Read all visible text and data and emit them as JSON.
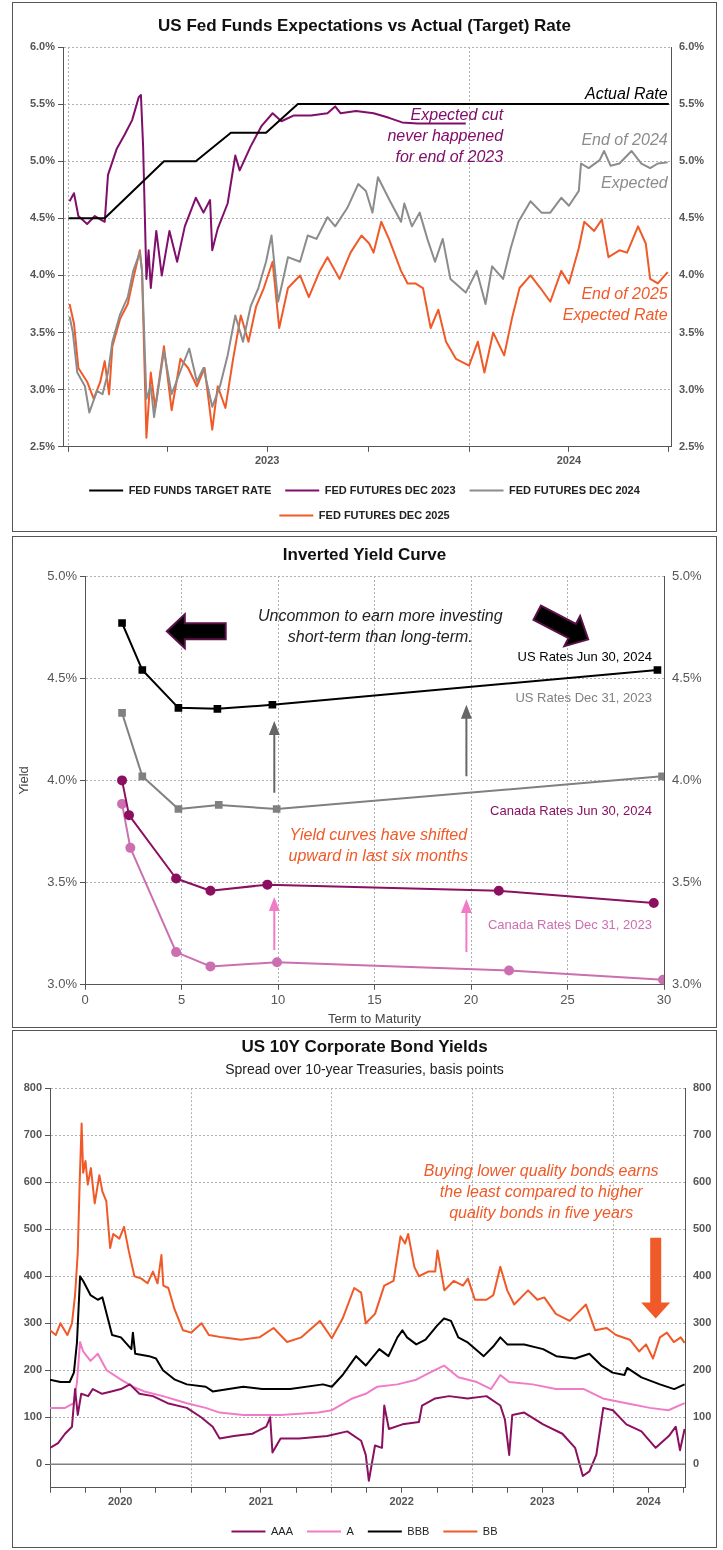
{
  "chart_data": [
    {
      "type": "line",
      "title": "US Fed Funds Expectations vs Actual (Target) Rate",
      "legend": "bottom",
      "grid": true,
      "xlim": [
        "2022-12-27",
        "2024-07-03"
      ],
      "xticks": [
        {
          "value": "2023-01-01",
          "label": null
        },
        {
          "value": "2023-04-01",
          "label": null
        },
        {
          "value": "2023-07-01",
          "label": "2023"
        },
        {
          "value": "2023-10-01",
          "label": null
        },
        {
          "value": "2024-01-01",
          "label": null
        },
        {
          "value": "2024-04-01",
          "label": "2024"
        },
        {
          "value": "2024-07-01",
          "label": null
        }
      ],
      "ylim": [
        2.5,
        6.0
      ],
      "yticks": [
        {
          "value": 2.5,
          "label": "2.5%"
        },
        {
          "value": 3.0,
          "label": "3.0%"
        },
        {
          "value": 3.5,
          "label": "3.5%"
        },
        {
          "value": 4.0,
          "label": "4.0%"
        },
        {
          "value": 4.5,
          "label": "4.5%"
        },
        {
          "value": 5.0,
          "label": "5.0%"
        },
        {
          "value": 5.5,
          "label": "5.5%"
        },
        {
          "value": 6.0,
          "label": "6.0%"
        }
      ],
      "y2lim": [
        2.5,
        6.0
      ],
      "y2ticks": [
        {
          "value": 2.5,
          "label": "2.5%"
        },
        {
          "value": 3.0,
          "label": "3.0%"
        },
        {
          "value": 3.5,
          "label": "3.5%"
        },
        {
          "value": 4.0,
          "label": "4.0%"
        },
        {
          "value": 4.5,
          "label": "4.5%"
        },
        {
          "value": 5.0,
          "label": "5.0%"
        },
        {
          "value": 5.5,
          "label": "5.5%"
        },
        {
          "value": 6.0,
          "label": "6.0%"
        }
      ],
      "series": [
        {
          "name": "FED FUNDS TARGET RATE",
          "color": "#000000",
          "x": [
            "2023-01-01",
            "2023-02-03",
            "2023-03-29",
            "2023-04-27",
            "2023-05-29",
            "2023-06-30",
            "2023-07-29",
            "2024-07-01"
          ],
          "values": [
            4.5,
            4.5,
            5.0,
            5.0,
            5.25,
            5.25,
            5.5,
            5.5
          ]
        },
        {
          "name": "FED FUTURES DEC 2023",
          "color": "#800e6a",
          "x": [
            "2023-01-02",
            "2023-01-06",
            "2023-01-10",
            "2023-01-18",
            "2023-01-25",
            "2023-02-01",
            "2023-02-03",
            "2023-02-06",
            "2023-02-14",
            "2023-02-21",
            "2023-02-28",
            "2023-03-06",
            "2023-03-08",
            "2023-03-10",
            "2023-03-13",
            "2023-03-15",
            "2023-03-17",
            "2023-03-22",
            "2023-03-27",
            "2023-04-03",
            "2023-04-10",
            "2023-04-17",
            "2023-04-27",
            "2023-05-04",
            "2023-05-10",
            "2023-05-12",
            "2023-05-17",
            "2023-05-26",
            "2023-06-02",
            "2023-06-06",
            "2023-06-16",
            "2023-06-26",
            "2023-07-06",
            "2023-07-14",
            "2023-07-25",
            "2023-08-10",
            "2023-08-25",
            "2023-09-01",
            "2023-09-06",
            "2023-09-20",
            "2023-10-06",
            "2023-10-20",
            "2023-11-01",
            "2023-11-15",
            "2023-12-01",
            "2023-12-29"
          ],
          "values": [
            4.65,
            4.72,
            4.52,
            4.45,
            4.52,
            4.48,
            4.47,
            4.88,
            5.11,
            5.23,
            5.36,
            5.56,
            5.58,
            5.13,
            3.97,
            4.22,
            3.89,
            4.39,
            4.0,
            4.39,
            4.12,
            4.43,
            4.68,
            4.55,
            4.66,
            4.22,
            4.41,
            4.63,
            5.05,
            4.92,
            5.13,
            5.31,
            5.42,
            5.35,
            5.4,
            5.4,
            5.42,
            5.48,
            5.42,
            5.44,
            5.42,
            5.38,
            5.34,
            5.33,
            5.33,
            5.33
          ]
        },
        {
          "name": "FED FUTURES DEC 2024",
          "color": "#8c8c8c",
          "x": [
            "2023-01-02",
            "2023-01-05",
            "2023-01-09",
            "2023-01-16",
            "2023-01-20",
            "2023-01-27",
            "2023-02-01",
            "2023-02-06",
            "2023-02-10",
            "2023-02-17",
            "2023-02-24",
            "2023-03-01",
            "2023-03-07",
            "2023-03-09",
            "2023-03-13",
            "2023-03-17",
            "2023-03-20",
            "2023-03-29",
            "2023-04-05",
            "2023-04-14",
            "2023-04-21",
            "2023-04-28",
            "2023-05-04",
            "2023-05-12",
            "2023-05-19",
            "2023-05-26",
            "2023-06-02",
            "2023-06-09",
            "2023-06-16",
            "2023-06-23",
            "2023-06-30",
            "2023-07-05",
            "2023-07-11",
            "2023-07-20",
            "2023-07-31",
            "2023-08-07",
            "2023-08-15",
            "2023-08-25",
            "2023-09-01",
            "2023-09-12",
            "2023-09-22",
            "2023-09-29",
            "2023-10-05",
            "2023-10-10",
            "2023-10-20",
            "2023-10-31",
            "2023-11-03",
            "2023-11-10",
            "2023-11-17",
            "2023-11-24",
            "2023-12-01",
            "2023-12-08",
            "2023-12-15",
            "2023-12-29",
            "2024-01-08",
            "2024-01-16",
            "2024-01-22",
            "2024-02-01",
            "2024-02-08",
            "2024-02-15",
            "2024-02-26",
            "2024-03-07",
            "2024-03-15",
            "2024-03-25",
            "2024-04-01",
            "2024-04-10",
            "2024-04-12",
            "2024-04-19",
            "2024-04-29",
            "2024-05-03",
            "2024-05-09",
            "2024-05-17",
            "2024-05-28",
            "2024-06-06",
            "2024-06-14",
            "2024-06-21",
            "2024-06-30"
          ],
          "values": [
            3.64,
            3.5,
            3.15,
            3.03,
            2.8,
            2.99,
            2.96,
            3.15,
            3.42,
            3.66,
            3.81,
            4.04,
            4.2,
            4.04,
            2.92,
            3.03,
            2.76,
            3.34,
            2.96,
            3.19,
            3.36,
            3.07,
            3.19,
            2.85,
            3.03,
            3.3,
            3.65,
            3.42,
            3.73,
            3.89,
            4.12,
            4.35,
            3.77,
            4.16,
            4.12,
            4.35,
            4.32,
            4.51,
            4.43,
            4.59,
            4.8,
            4.74,
            4.55,
            4.86,
            4.67,
            4.47,
            4.63,
            4.43,
            4.55,
            4.32,
            4.12,
            4.32,
            3.97,
            3.85,
            4.04,
            3.75,
            4.08,
            3.97,
            4.24,
            4.47,
            4.65,
            4.55,
            4.55,
            4.68,
            4.61,
            4.74,
            4.98,
            4.94,
            5.01,
            5.09,
            4.96,
            4.98,
            5.09,
            4.98,
            4.94,
            4.98,
            4.99
          ]
        },
        {
          "name": "FED FUTURES DEC 2025",
          "color": "#f05a28",
          "x": [
            "2023-01-02",
            "2023-01-06",
            "2023-01-10",
            "2023-01-18",
            "2023-01-24",
            "2023-01-30",
            "2023-02-03",
            "2023-02-07",
            "2023-02-10",
            "2023-02-17",
            "2023-02-24",
            "2023-03-01",
            "2023-03-07",
            "2023-03-09",
            "2023-03-13",
            "2023-03-17",
            "2023-03-21",
            "2023-03-29",
            "2023-04-05",
            "2023-04-13",
            "2023-04-20",
            "2023-04-28",
            "2023-05-05",
            "2023-05-12",
            "2023-05-17",
            "2023-05-24",
            "2023-05-31",
            "2023-06-07",
            "2023-06-14",
            "2023-06-21",
            "2023-06-28",
            "2023-07-06",
            "2023-07-12",
            "2023-07-20",
            "2023-07-31",
            "2023-08-08",
            "2023-08-18",
            "2023-08-25",
            "2023-09-05",
            "2023-09-15",
            "2023-09-25",
            "2023-10-02",
            "2023-10-06",
            "2023-10-13",
            "2023-10-20",
            "2023-10-31",
            "2023-11-06",
            "2023-11-13",
            "2023-11-20",
            "2023-11-27",
            "2023-12-04",
            "2023-12-11",
            "2023-12-20",
            "2024-01-01",
            "2024-01-09",
            "2024-01-15",
            "2024-01-23",
            "2024-02-02",
            "2024-02-09",
            "2024-02-16",
            "2024-02-26",
            "2024-03-06",
            "2024-03-15",
            "2024-03-25",
            "2024-04-01",
            "2024-04-10",
            "2024-04-15",
            "2024-04-24",
            "2024-05-01",
            "2024-05-07",
            "2024-05-17",
            "2024-05-24",
            "2024-06-03",
            "2024-06-10",
            "2024-06-14",
            "2024-06-21",
            "2024-06-30"
          ],
          "values": [
            3.75,
            3.58,
            3.19,
            3.07,
            2.92,
            3.07,
            3.25,
            2.96,
            3.38,
            3.62,
            3.75,
            3.97,
            4.22,
            4.04,
            2.58,
            3.15,
            2.84,
            3.38,
            2.82,
            3.27,
            3.19,
            3.03,
            3.19,
            2.65,
            3.03,
            2.84,
            3.27,
            3.65,
            3.42,
            3.73,
            3.89,
            4.12,
            3.54,
            3.89,
            4.0,
            3.81,
            4.04,
            4.16,
            3.97,
            4.2,
            4.35,
            4.28,
            4.2,
            4.47,
            4.32,
            4.04,
            3.93,
            3.93,
            3.89,
            3.54,
            3.7,
            3.42,
            3.27,
            3.21,
            3.42,
            3.15,
            3.5,
            3.3,
            3.62,
            3.89,
            4.0,
            3.89,
            3.77,
            4.04,
            3.93,
            4.24,
            4.47,
            4.39,
            4.49,
            4.16,
            4.22,
            4.2,
            4.43,
            4.28,
            3.97,
            3.93,
            4.03
          ]
        }
      ],
      "annotations": [
        "Actual Rate",
        "Expected cut\nnever happened\nfor end of 2023",
        "End of 2024\nExpected",
        "End of 2025\nExpected Rate"
      ]
    },
    {
      "type": "line",
      "title": "Inverted Yield Curve",
      "xlabel": "Term to Maturity",
      "ylabel": "Yield",
      "legend": false,
      "grid": true,
      "xlim": [
        0,
        30
      ],
      "xticks": [
        0,
        5,
        10,
        15,
        20,
        25,
        30
      ],
      "ylim": [
        3.0,
        5.0
      ],
      "yticks": [
        {
          "value": 3.0,
          "label": "3.0%"
        },
        {
          "value": 3.5,
          "label": "3.5%"
        },
        {
          "value": 4.0,
          "label": "4.0%"
        },
        {
          "value": 4.5,
          "label": "4.5%"
        },
        {
          "value": 5.0,
          "label": "5.0%"
        }
      ],
      "y2lim": [
        3.0,
        5.0
      ],
      "y2ticks": [
        {
          "value": 3.0,
          "label": "3.0%"
        },
        {
          "value": 3.5,
          "label": "3.5%"
        },
        {
          "value": 4.0,
          "label": "4.0%"
        },
        {
          "value": 4.5,
          "label": "4.5%"
        },
        {
          "value": 5.0,
          "label": "5.0%"
        }
      ],
      "series": [
        {
          "name": "US Rates Jun 30, 2024",
          "color": "#000000",
          "marker": "square",
          "x": [
            1.92,
            2.97,
            4.84,
            6.86,
            9.71,
            29.66
          ],
          "values": [
            4.77,
            4.54,
            4.355,
            4.35,
            4.37,
            4.54
          ]
        },
        {
          "name": "US Rates Dec 31, 2023",
          "color": "#808080",
          "marker": "square",
          "x": [
            1.92,
            2.97,
            4.84,
            6.93,
            9.93,
            29.9
          ],
          "values": [
            4.33,
            4.02,
            3.86,
            3.88,
            3.86,
            4.02
          ]
        },
        {
          "name": "Canada Rates Jun 30, 2024",
          "color": "#8b1060",
          "marker": "circle",
          "x": [
            1.92,
            2.28,
            4.72,
            6.5,
            9.45,
            21.44,
            29.47
          ],
          "values": [
            4.0,
            3.83,
            3.52,
            3.46,
            3.49,
            3.46,
            3.4
          ]
        },
        {
          "name": "Canada Rates Dec 31, 2023",
          "color": "#cc6fb0",
          "marker": "circle",
          "x": [
            1.92,
            2.35,
            4.72,
            6.5,
            9.95,
            21.97,
            29.95
          ],
          "values": [
            3.885,
            3.67,
            3.16,
            3.09,
            3.11,
            3.07,
            3.025
          ]
        }
      ],
      "annotations": [
        "Uncommon to earn more investing\nshort-term than long-term.",
        "Yield curves have shifted\nupward in last six months"
      ]
    },
    {
      "type": "line",
      "title": "US 10Y Corporate Bond Yields",
      "subtitle": "Spread over 10-year Treasuries, basis points",
      "legend": "bottom",
      "grid": true,
      "xlim": [
        "2020-01-01",
        "2024-07-05"
      ],
      "xticks": [
        {
          "value": "2020-01-01",
          "label": null
        },
        {
          "value": "2020-04-01",
          "label": null
        },
        {
          "value": "2020-07-01",
          "label": "2020"
        },
        {
          "value": "2020-10-01",
          "label": null
        },
        {
          "value": "2021-01-01",
          "label": null
        },
        {
          "value": "2021-04-01",
          "label": null
        },
        {
          "value": "2021-07-01",
          "label": "2021"
        },
        {
          "value": "2021-10-01",
          "label": null
        },
        {
          "value": "2022-01-01",
          "label": null
        },
        {
          "value": "2022-04-01",
          "label": null
        },
        {
          "value": "2022-07-01",
          "label": "2022"
        },
        {
          "value": "2022-10-01",
          "label": null
        },
        {
          "value": "2023-01-01",
          "label": null
        },
        {
          "value": "2023-04-01",
          "label": null
        },
        {
          "value": "2023-07-01",
          "label": "2023"
        },
        {
          "value": "2023-10-01",
          "label": null
        },
        {
          "value": "2024-01-01",
          "label": null
        },
        {
          "value": "2024-04-01",
          "label": "2024"
        },
        {
          "value": "2024-07-01",
          "label": null
        }
      ],
      "ylim": [
        -50,
        800
      ],
      "yticks": [
        0,
        100,
        200,
        300,
        400,
        500,
        600,
        700,
        800
      ],
      "y2lim": [
        -50,
        800
      ],
      "y2ticks": [
        0,
        100,
        200,
        300,
        400,
        500,
        600,
        700,
        800
      ],
      "ref_lines": [
        {
          "axis": "y",
          "value": 0,
          "color": "#808080",
          "line_style": "solid"
        }
      ],
      "series": [
        {
          "name": "AAA",
          "color": "#8b1060",
          "x": [
            "2020-01-01",
            "2020-01-22",
            "2020-02-09",
            "2020-02-27",
            "2020-03-06",
            "2020-03-13",
            "2020-03-22",
            "2020-04-09",
            "2020-04-21",
            "2020-05-15",
            "2020-06-08",
            "2020-07-03",
            "2020-07-26",
            "2020-08-20",
            "2020-09-24",
            "2020-11-01",
            "2020-12-21",
            "2021-01-27",
            "2021-02-26",
            "2021-03-16",
            "2021-04-22",
            "2021-06-09",
            "2021-07-15",
            "2021-07-25",
            "2021-07-31",
            "2021-08-21",
            "2021-10-08",
            "2021-12-20",
            "2022-02-10",
            "2022-03-18",
            "2022-03-30",
            "2022-04-07",
            "2022-04-23",
            "2022-05-11",
            "2022-05-17",
            "2022-05-29",
            "2022-07-03",
            "2022-08-15",
            "2022-08-23",
            "2022-09-26",
            "2022-11-01",
            "2022-12-19",
            "2023-02-06",
            "2023-03-14",
            "2023-03-26",
            "2023-04-06",
            "2023-04-14",
            "2023-05-15",
            "2023-07-03",
            "2023-08-22",
            "2023-09-24",
            "2023-10-14",
            "2023-10-31",
            "2023-11-18",
            "2023-12-06",
            "2023-12-31",
            "2024-02-04",
            "2024-03-14",
            "2024-04-20",
            "2024-05-24",
            "2024-06-11",
            "2024-06-22",
            "2024-07-04"
          ],
          "values": [
            35,
            45,
            65,
            80,
            160,
            105,
            150,
            145,
            160,
            150,
            155,
            160,
            170,
            150,
            145,
            130,
            120,
            100,
            80,
            55,
            60,
            65,
            80,
            100,
            25,
            55,
            55,
            60,
            70,
            50,
            20,
            -35,
            40,
            35,
            125,
            75,
            85,
            90,
            125,
            140,
            145,
            140,
            145,
            125,
            95,
            20,
            105,
            110,
            85,
            65,
            35,
            -25,
            -15,
            20,
            120,
            115,
            85,
            70,
            35,
            60,
            80,
            30,
            75
          ]
        },
        {
          "name": "A",
          "color": "#f07cc8",
          "x": [
            "2020-01-01",
            "2020-02-09",
            "2020-03-03",
            "2020-03-11",
            "2020-03-19",
            "2020-03-27",
            "2020-04-15",
            "2020-05-04",
            "2020-05-27",
            "2020-07-03",
            "2020-08-03",
            "2020-09-02",
            "2020-10-20",
            "2020-12-21",
            "2021-02-08",
            "2021-03-16",
            "2021-05-16",
            "2021-08-21",
            "2021-11-27",
            "2022-01-01",
            "2022-02-23",
            "2022-03-30",
            "2022-04-29",
            "2022-06-20",
            "2022-08-08",
            "2022-09-12",
            "2022-10-19",
            "2022-11-25",
            "2023-01-12",
            "2023-02-18",
            "2023-03-14",
            "2023-04-06",
            "2023-06-06",
            "2023-08-05",
            "2023-10-17",
            "2023-12-05",
            "2024-02-04",
            "2024-04-05",
            "2024-05-23",
            "2024-07-04"
          ],
          "values": [
            120,
            120,
            130,
            175,
            260,
            240,
            220,
            235,
            200,
            180,
            165,
            155,
            145,
            130,
            120,
            110,
            105,
            105,
            110,
            115,
            140,
            150,
            165,
            170,
            180,
            195,
            210,
            185,
            175,
            160,
            190,
            175,
            170,
            160,
            160,
            140,
            130,
            120,
            115,
            130
          ]
        },
        {
          "name": "BBB",
          "color": "#000000",
          "x": [
            "2020-01-01",
            "2020-01-28",
            "2020-02-21",
            "2020-03-03",
            "2020-03-11",
            "2020-03-19",
            "2020-03-27",
            "2020-04-15",
            "2020-05-04",
            "2020-05-16",
            "2020-05-30",
            "2020-06-10",
            "2020-07-03",
            "2020-07-30",
            "2020-08-03",
            "2020-08-09",
            "2020-09-14",
            "2020-10-02",
            "2020-10-20",
            "2020-11-20",
            "2020-12-21",
            "2021-02-08",
            "2021-02-26",
            "2021-05-16",
            "2021-07-04",
            "2021-09-15",
            "2021-12-09",
            "2022-01-01",
            "2022-01-29",
            "2022-03-05",
            "2022-03-30",
            "2022-05-04",
            "2022-05-28",
            "2022-06-20",
            "2022-07-03",
            "2022-07-15",
            "2022-08-08",
            "2022-09-01",
            "2022-10-01",
            "2022-10-19",
            "2022-11-06",
            "2022-11-25",
            "2022-12-18",
            "2023-01-30",
            "2023-02-23",
            "2023-03-14",
            "2023-04-01",
            "2023-05-15",
            "2023-07-03",
            "2023-08-06",
            "2023-09-24",
            "2023-10-31",
            "2023-12-01",
            "2023-12-30",
            "2024-01-30",
            "2024-02-06",
            "2024-03-14",
            "2024-05-01",
            "2024-06-07",
            "2024-07-04"
          ],
          "values": [
            180,
            175,
            175,
            195,
            260,
            400,
            390,
            360,
            350,
            355,
            310,
            275,
            270,
            245,
            280,
            235,
            230,
            225,
            200,
            180,
            170,
            165,
            155,
            165,
            160,
            160,
            170,
            165,
            190,
            230,
            210,
            245,
            230,
            270,
            285,
            270,
            255,
            265,
            295,
            310,
            305,
            270,
            260,
            230,
            250,
            270,
            255,
            255,
            245,
            230,
            225,
            235,
            210,
            195,
            190,
            205,
            185,
            170,
            160,
            170
          ]
        },
        {
          "name": "BB",
          "color": "#f05a28",
          "x": [
            "2020-01-01",
            "2020-01-16",
            "2020-01-28",
            "2020-02-15",
            "2020-02-27",
            "2020-03-06",
            "2020-03-13",
            "2020-03-18",
            "2020-03-23",
            "2020-03-27",
            "2020-04-02",
            "2020-04-08",
            "2020-04-16",
            "2020-04-26",
            "2020-05-08",
            "2020-05-16",
            "2020-05-26",
            "2020-06-05",
            "2020-06-13",
            "2020-06-29",
            "2020-07-11",
            "2020-07-23",
            "2020-08-07",
            "2020-08-25",
            "2020-09-10",
            "2020-09-24",
            "2020-10-06",
            "2020-10-16",
            "2020-10-21",
            "2020-11-03",
            "2020-11-19",
            "2020-12-11",
            "2021-01-01",
            "2021-01-28",
            "2021-02-16",
            "2021-03-23",
            "2021-05-10",
            "2021-06-27",
            "2021-08-03",
            "2021-09-07",
            "2021-10-14",
            "2021-12-01",
            "2022-01-01",
            "2022-01-29",
            "2022-02-28",
            "2022-03-18",
            "2022-03-30",
            "2022-04-23",
            "2022-05-17",
            "2022-06-10",
            "2022-06-28",
            "2022-07-10",
            "2022-07-18",
            "2022-08-03",
            "2022-08-15",
            "2022-09-08",
            "2022-09-26",
            "2022-10-02",
            "2022-10-20",
            "2022-11-13",
            "2022-12-07",
            "2022-12-20",
            "2023-01-07",
            "2023-02-06",
            "2023-02-24",
            "2023-03-14",
            "2023-04-01",
            "2023-04-19",
            "2023-05-25",
            "2023-06-18",
            "2023-07-06",
            "2023-08-05",
            "2023-09-10",
            "2023-10-22",
            "2023-11-15",
            "2023-12-15",
            "2024-01-08",
            "2024-02-13",
            "2024-03-08",
            "2024-03-26",
            "2024-04-13",
            "2024-05-01",
            "2024-05-19",
            "2024-06-06",
            "2024-06-24",
            "2024-07-04"
          ],
          "values": [
            285,
            275,
            300,
            275,
            300,
            360,
            450,
            600,
            725,
            620,
            645,
            595,
            630,
            555,
            615,
            580,
            560,
            460,
            490,
            480,
            505,
            455,
            400,
            395,
            385,
            410,
            385,
            445,
            380,
            375,
            330,
            285,
            280,
            300,
            275,
            270,
            265,
            270,
            290,
            260,
            270,
            305,
            268,
            310,
            375,
            365,
            300,
            320,
            380,
            390,
            485,
            470,
            490,
            420,
            400,
            410,
            410,
            455,
            370,
            390,
            380,
            395,
            350,
            350,
            360,
            420,
            370,
            340,
            370,
            350,
            355,
            320,
            305,
            340,
            285,
            290,
            275,
            265,
            240,
            255,
            225,
            270,
            280,
            260,
            270,
            258
          ]
        }
      ],
      "annotations": [
        "Buying lower quality bonds earns\nthe least compared to higher\nquality bonds in five years"
      ]
    }
  ]
}
